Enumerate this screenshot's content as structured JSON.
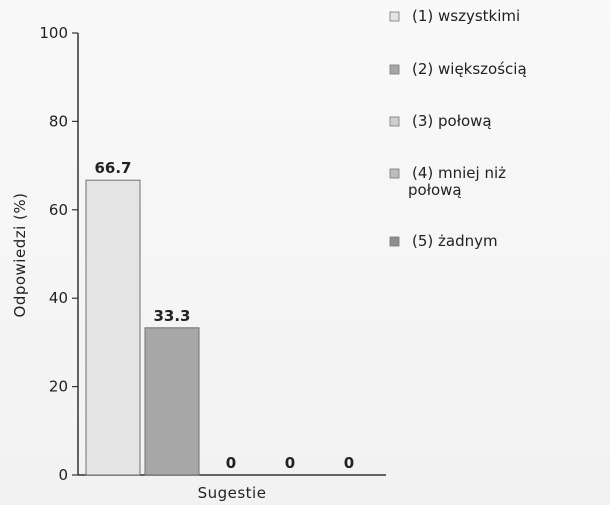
{
  "chart_data": {
    "type": "bar",
    "title": "",
    "xlabel": "Sugestie",
    "ylabel": "Odpowiedzi (%)",
    "ylim": [
      0,
      100
    ],
    "yticks": [
      0,
      20,
      40,
      60,
      80,
      100
    ],
    "grid": false,
    "legend_position": "right",
    "series": [
      {
        "name": "(1) wszystkimi",
        "value": 66.7,
        "label": "66.7",
        "color": "#e4e4e4"
      },
      {
        "name": "(2) większością",
        "value": 33.3,
        "label": "33.3",
        "color": "#a7a7a7"
      },
      {
        "name": "(3) połową",
        "value": 0,
        "label": "0",
        "color": "#cfcfcf"
      },
      {
        "name": "(4) mniej niż połową",
        "value": 0,
        "label": "0",
        "color": "#bdbdbd"
      },
      {
        "name": "(5) żadnym",
        "value": 0,
        "label": "0",
        "color": "#8f8f8f"
      }
    ]
  }
}
